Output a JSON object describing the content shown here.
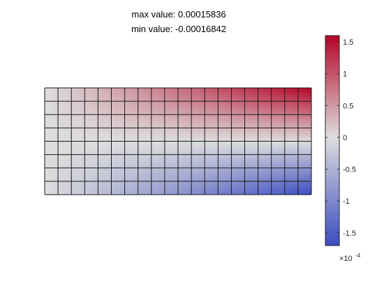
{
  "chart_data": {
    "type": "heatmap",
    "title_lines": [
      "max value: 0.00015836",
      "min value: -0.00016842"
    ],
    "grid": {
      "columns": 20,
      "rows": 8,
      "x_range": [
        0,
        20
      ],
      "y_range": [
        0,
        8
      ]
    },
    "value_model": "value(x, y) ≈ (y / 4 − 1) · 1.62e-4 · (x / 20), with x in [0, 20] left→right and y in [0, 8] bottom→top",
    "max_value": 0.00015836,
    "min_value": -0.00016842,
    "colorbar": {
      "min": -1.7,
      "max": 1.6,
      "ticks": [
        -1.5,
        -1,
        -0.5,
        0,
        0.5,
        1,
        1.5
      ],
      "tick_labels": [
        "-1.5",
        "-1",
        "-0.5",
        "0",
        "0.5",
        "1",
        "1.5"
      ],
      "multiplier_base": "×10",
      "multiplier_exponent": "-4",
      "colormap": "coolwarm (blue to light grey to red)",
      "colors": {
        "low": "#3b4cc0",
        "mid": "#dddddd",
        "high": "#b40426"
      }
    }
  }
}
